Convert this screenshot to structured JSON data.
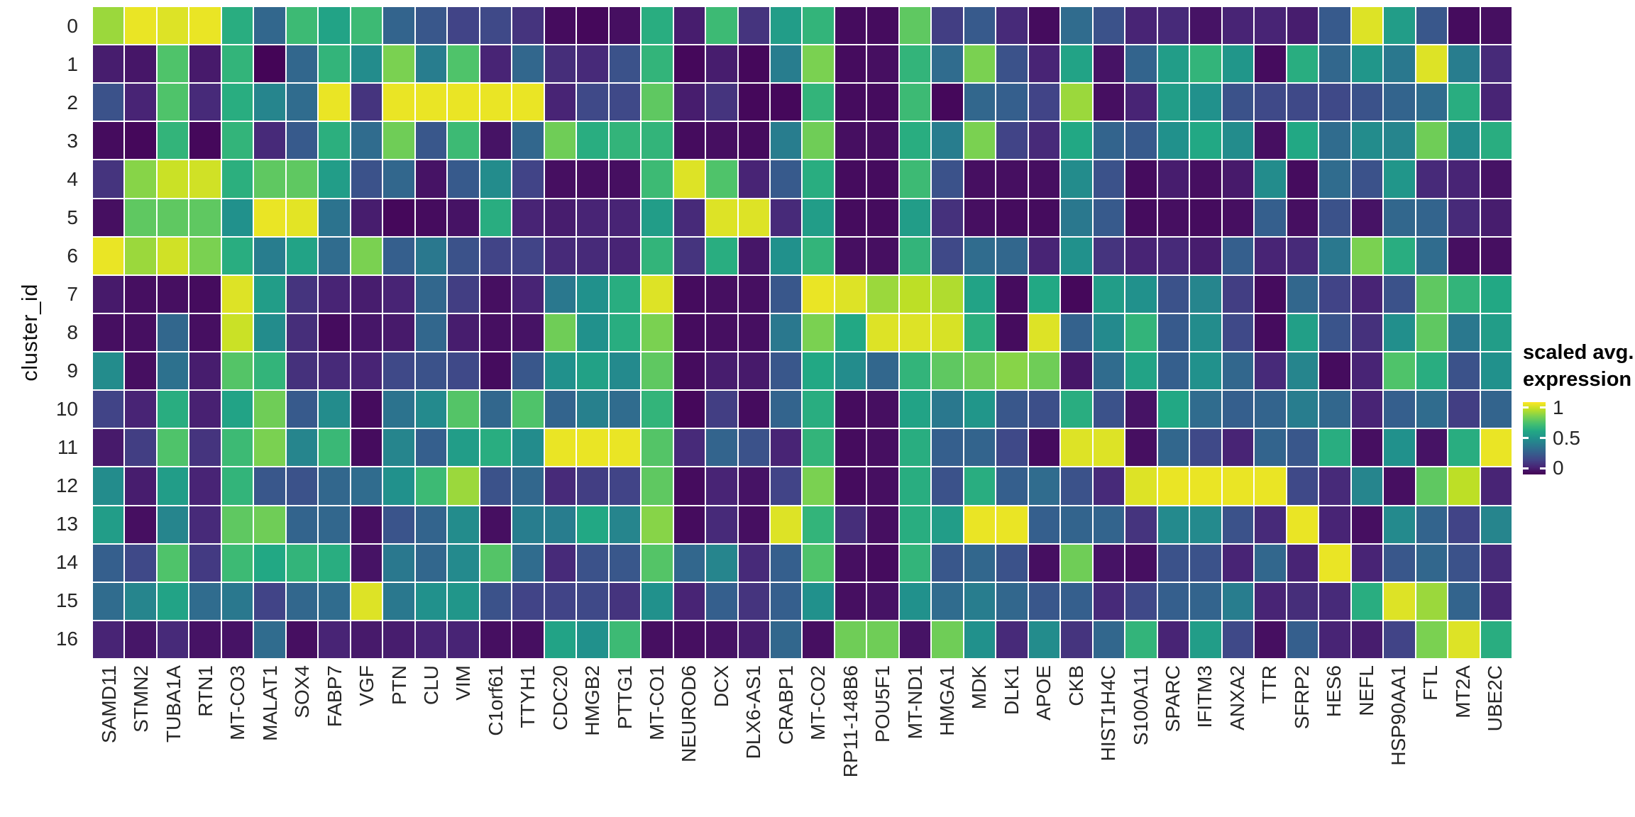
{
  "chart_data": {
    "type": "heatmap",
    "title": "",
    "xlabel": "",
    "ylabel": "cluster_id",
    "legend_title": "scaled avg. expression",
    "legend_position": "right",
    "value_range": [
      0,
      1
    ],
    "colormap": "viridis",
    "viridis_stops": [
      [
        0,
        "#440154"
      ],
      [
        0.1,
        "#482475"
      ],
      [
        0.2,
        "#414487"
      ],
      [
        0.3,
        "#355f8d"
      ],
      [
        0.4,
        "#2a788e"
      ],
      [
        0.5,
        "#21918c"
      ],
      [
        0.6,
        "#22a884"
      ],
      [
        0.7,
        "#44bf70"
      ],
      [
        0.8,
        "#7ad151"
      ],
      [
        0.9,
        "#bddf26"
      ],
      [
        1,
        "#fde725"
      ]
    ],
    "x_categories": [
      "SAMD11",
      "STMN2",
      "TUBA1A",
      "RTN1",
      "MT-CO3",
      "MALAT1",
      "SOX4",
      "FABP7",
      "VGF",
      "PTN",
      "CLU",
      "VIM",
      "C1orf61",
      "TTYH1",
      "CDC20",
      "HMGB2",
      "PTTG1",
      "MT-CO1",
      "NEUROD6",
      "DCX",
      "DLX6-AS1",
      "CRABP1",
      "MT-CO2",
      "RP11-148B6",
      "POU5F1",
      "MT-ND1",
      "HMGA1",
      "MDK",
      "DLK1",
      "APOE",
      "CKB",
      "HIST1H4C",
      "S100A11",
      "SPARC",
      "IFITM3",
      "ANXA2",
      "TTR",
      "SFRP2",
      "HES6",
      "NEFL",
      "HSP90AA1",
      "FTL",
      "MT2A",
      "UBE2C"
    ],
    "y_categories": [
      "0",
      "1",
      "2",
      "3",
      "4",
      "5",
      "6",
      "7",
      "8",
      "9",
      "10",
      "11",
      "12",
      "13",
      "14",
      "15",
      "16"
    ],
    "values": [
      [
        0.85,
        0.97,
        0.95,
        0.97,
        0.62,
        0.33,
        0.68,
        0.58,
        0.68,
        0.32,
        0.27,
        0.2,
        0.22,
        0.15,
        0.03,
        0.02,
        0.04,
        0.62,
        0.08,
        0.68,
        0.15,
        0.55,
        0.65,
        0.03,
        0.03,
        0.75,
        0.18,
        0.28,
        0.12,
        0.03,
        0.35,
        0.25,
        0.1,
        0.12,
        0.05,
        0.1,
        0.1,
        0.08,
        0.28,
        0.95,
        0.55,
        0.27,
        0.03,
        0.04
      ],
      [
        0.08,
        0.06,
        0.72,
        0.07,
        0.65,
        0.01,
        0.33,
        0.65,
        0.48,
        0.8,
        0.42,
        0.72,
        0.1,
        0.33,
        0.13,
        0.12,
        0.25,
        0.65,
        0.02,
        0.08,
        0.02,
        0.42,
        0.8,
        0.03,
        0.04,
        0.65,
        0.35,
        0.8,
        0.25,
        0.1,
        0.58,
        0.05,
        0.32,
        0.55,
        0.65,
        0.52,
        0.03,
        0.62,
        0.33,
        0.52,
        0.4,
        0.95,
        0.42,
        0.12
      ],
      [
        0.25,
        0.1,
        0.72,
        0.12,
        0.62,
        0.45,
        0.35,
        0.97,
        0.15,
        0.97,
        0.97,
        0.97,
        0.97,
        0.97,
        0.1,
        0.22,
        0.22,
        0.75,
        0.08,
        0.15,
        0.02,
        0.02,
        0.65,
        0.03,
        0.03,
        0.68,
        0.02,
        0.33,
        0.3,
        0.2,
        0.85,
        0.04,
        0.1,
        0.55,
        0.5,
        0.25,
        0.22,
        0.22,
        0.22,
        0.25,
        0.32,
        0.35,
        0.62,
        0.1
      ],
      [
        0.03,
        0.02,
        0.65,
        0.02,
        0.65,
        0.12,
        0.28,
        0.63,
        0.35,
        0.78,
        0.27,
        0.68,
        0.05,
        0.33,
        0.78,
        0.62,
        0.65,
        0.65,
        0.03,
        0.04,
        0.03,
        0.42,
        0.78,
        0.04,
        0.04,
        0.62,
        0.42,
        0.8,
        0.2,
        0.12,
        0.6,
        0.32,
        0.28,
        0.5,
        0.6,
        0.48,
        0.04,
        0.6,
        0.35,
        0.48,
        0.45,
        0.78,
        0.48,
        0.62
      ],
      [
        0.15,
        0.82,
        0.92,
        0.93,
        0.63,
        0.75,
        0.75,
        0.55,
        0.25,
        0.33,
        0.05,
        0.28,
        0.48,
        0.2,
        0.04,
        0.04,
        0.04,
        0.68,
        0.95,
        0.72,
        0.1,
        0.28,
        0.62,
        0.03,
        0.03,
        0.68,
        0.25,
        0.04,
        0.04,
        0.04,
        0.48,
        0.25,
        0.03,
        0.08,
        0.04,
        0.07,
        0.48,
        0.03,
        0.35,
        0.25,
        0.52,
        0.12,
        0.1,
        0.05
      ],
      [
        0.04,
        0.75,
        0.75,
        0.75,
        0.5,
        0.97,
        0.96,
        0.38,
        0.08,
        0.02,
        0.03,
        0.05,
        0.62,
        0.1,
        0.08,
        0.1,
        0.1,
        0.55,
        0.12,
        0.95,
        0.95,
        0.12,
        0.55,
        0.03,
        0.03,
        0.55,
        0.14,
        0.04,
        0.03,
        0.03,
        0.4,
        0.28,
        0.03,
        0.04,
        0.03,
        0.04,
        0.3,
        0.04,
        0.25,
        0.05,
        0.33,
        0.32,
        0.12,
        0.08
      ],
      [
        0.97,
        0.85,
        0.93,
        0.8,
        0.62,
        0.42,
        0.58,
        0.35,
        0.8,
        0.3,
        0.4,
        0.25,
        0.2,
        0.2,
        0.12,
        0.12,
        0.1,
        0.65,
        0.15,
        0.62,
        0.06,
        0.5,
        0.65,
        0.04,
        0.04,
        0.65,
        0.22,
        0.35,
        0.33,
        0.1,
        0.5,
        0.15,
        0.1,
        0.12,
        0.08,
        0.3,
        0.1,
        0.12,
        0.4,
        0.8,
        0.62,
        0.35,
        0.04,
        0.04
      ],
      [
        0.07,
        0.04,
        0.04,
        0.03,
        0.95,
        0.55,
        0.15,
        0.1,
        0.08,
        0.1,
        0.33,
        0.18,
        0.04,
        0.1,
        0.4,
        0.5,
        0.62,
        0.95,
        0.03,
        0.04,
        0.04,
        0.27,
        0.97,
        0.95,
        0.85,
        0.9,
        0.88,
        0.58,
        0.03,
        0.6,
        0.02,
        0.55,
        0.5,
        0.25,
        0.45,
        0.18,
        0.03,
        0.33,
        0.2,
        0.1,
        0.25,
        0.75,
        0.65,
        0.6
      ],
      [
        0.04,
        0.04,
        0.33,
        0.04,
        0.92,
        0.48,
        0.13,
        0.03,
        0.06,
        0.07,
        0.33,
        0.08,
        0.04,
        0.05,
        0.78,
        0.5,
        0.62,
        0.8,
        0.03,
        0.04,
        0.04,
        0.4,
        0.8,
        0.6,
        0.95,
        0.95,
        0.94,
        0.63,
        0.03,
        0.95,
        0.31,
        0.47,
        0.65,
        0.28,
        0.48,
        0.22,
        0.03,
        0.56,
        0.26,
        0.14,
        0.49,
        0.75,
        0.4,
        0.55
      ],
      [
        0.48,
        0.04,
        0.37,
        0.08,
        0.73,
        0.65,
        0.14,
        0.12,
        0.1,
        0.22,
        0.25,
        0.22,
        0.03,
        0.27,
        0.5,
        0.57,
        0.47,
        0.75,
        0.03,
        0.08,
        0.07,
        0.27,
        0.6,
        0.48,
        0.33,
        0.65,
        0.75,
        0.78,
        0.82,
        0.78,
        0.06,
        0.35,
        0.58,
        0.3,
        0.5,
        0.33,
        0.12,
        0.45,
        0.03,
        0.1,
        0.72,
        0.62,
        0.25,
        0.5
      ],
      [
        0.2,
        0.1,
        0.62,
        0.09,
        0.58,
        0.78,
        0.28,
        0.48,
        0.03,
        0.38,
        0.47,
        0.73,
        0.33,
        0.72,
        0.32,
        0.43,
        0.35,
        0.65,
        0.02,
        0.18,
        0.03,
        0.32,
        0.62,
        0.03,
        0.04,
        0.58,
        0.4,
        0.52,
        0.27,
        0.24,
        0.62,
        0.25,
        0.05,
        0.6,
        0.35,
        0.3,
        0.32,
        0.42,
        0.33,
        0.1,
        0.3,
        0.35,
        0.18,
        0.32
      ],
      [
        0.07,
        0.18,
        0.72,
        0.15,
        0.68,
        0.8,
        0.45,
        0.67,
        0.03,
        0.45,
        0.3,
        0.55,
        0.62,
        0.48,
        0.97,
        0.97,
        0.97,
        0.73,
        0.12,
        0.32,
        0.25,
        0.1,
        0.65,
        0.03,
        0.04,
        0.62,
        0.3,
        0.32,
        0.22,
        0.03,
        0.95,
        0.95,
        0.04,
        0.33,
        0.22,
        0.1,
        0.32,
        0.27,
        0.62,
        0.04,
        0.5,
        0.05,
        0.62,
        0.97
      ],
      [
        0.48,
        0.08,
        0.55,
        0.1,
        0.65,
        0.27,
        0.25,
        0.33,
        0.35,
        0.5,
        0.68,
        0.85,
        0.25,
        0.33,
        0.12,
        0.18,
        0.2,
        0.75,
        0.03,
        0.1,
        0.05,
        0.2,
        0.8,
        0.03,
        0.04,
        0.62,
        0.25,
        0.62,
        0.3,
        0.35,
        0.25,
        0.12,
        0.95,
        0.97,
        0.97,
        0.97,
        0.97,
        0.22,
        0.12,
        0.45,
        0.04,
        0.75,
        0.9,
        0.1
      ],
      [
        0.55,
        0.04,
        0.45,
        0.12,
        0.75,
        0.78,
        0.32,
        0.33,
        0.04,
        0.26,
        0.32,
        0.48,
        0.04,
        0.42,
        0.42,
        0.6,
        0.45,
        0.82,
        0.03,
        0.12,
        0.04,
        0.95,
        0.65,
        0.13,
        0.04,
        0.62,
        0.55,
        0.97,
        0.97,
        0.3,
        0.32,
        0.32,
        0.15,
        0.47,
        0.47,
        0.25,
        0.12,
        0.97,
        0.1,
        0.04,
        0.47,
        0.32,
        0.2,
        0.45
      ],
      [
        0.3,
        0.22,
        0.72,
        0.17,
        0.68,
        0.6,
        0.65,
        0.62,
        0.05,
        0.4,
        0.33,
        0.47,
        0.73,
        0.35,
        0.12,
        0.25,
        0.27,
        0.73,
        0.33,
        0.45,
        0.12,
        0.3,
        0.72,
        0.04,
        0.03,
        0.65,
        0.27,
        0.33,
        0.25,
        0.04,
        0.78,
        0.05,
        0.04,
        0.25,
        0.25,
        0.1,
        0.33,
        0.1,
        0.97,
        0.1,
        0.27,
        0.33,
        0.25,
        0.12
      ],
      [
        0.35,
        0.45,
        0.58,
        0.35,
        0.4,
        0.2,
        0.33,
        0.35,
        0.95,
        0.4,
        0.5,
        0.52,
        0.25,
        0.2,
        0.2,
        0.22,
        0.15,
        0.5,
        0.1,
        0.3,
        0.15,
        0.3,
        0.5,
        0.04,
        0.05,
        0.5,
        0.35,
        0.42,
        0.33,
        0.27,
        0.3,
        0.12,
        0.22,
        0.3,
        0.32,
        0.42,
        0.1,
        0.13,
        0.12,
        0.62,
        0.95,
        0.85,
        0.32,
        0.1
      ],
      [
        0.1,
        0.06,
        0.12,
        0.05,
        0.05,
        0.35,
        0.04,
        0.1,
        0.07,
        0.08,
        0.1,
        0.1,
        0.04,
        0.04,
        0.58,
        0.5,
        0.68,
        0.04,
        0.04,
        0.05,
        0.08,
        0.33,
        0.04,
        0.78,
        0.78,
        0.05,
        0.78,
        0.5,
        0.12,
        0.48,
        0.15,
        0.33,
        0.65,
        0.1,
        0.55,
        0.22,
        0.04,
        0.3,
        0.1,
        0.08,
        0.2,
        0.8,
        0.95,
        0.62
      ]
    ]
  },
  "y_axis": {
    "title": "cluster_id"
  },
  "legend": {
    "title_line1": "scaled avg.",
    "title_line2": "expression",
    "ticks": [
      {
        "label": "1",
        "pos": 0.08
      },
      {
        "label": "0.5",
        "pos": 0.5
      },
      {
        "label": "0",
        "pos": 0.92
      }
    ]
  }
}
